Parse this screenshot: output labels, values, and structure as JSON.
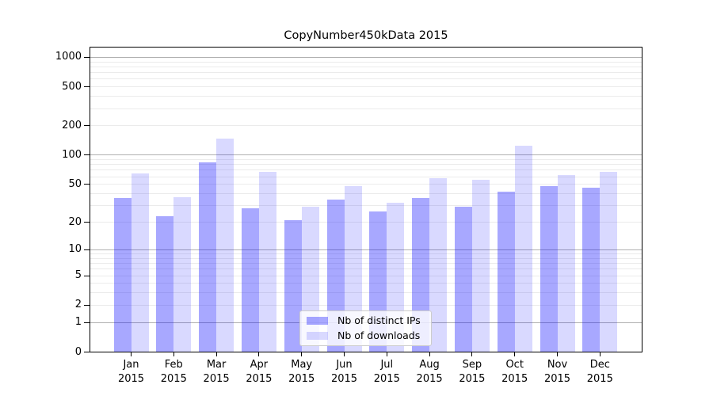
{
  "chart_data": {
    "type": "bar",
    "title": "CopyNumber450kData 2015",
    "categories": [
      "Jan",
      "Feb",
      "Mar",
      "Apr",
      "May",
      "Jun",
      "Jul",
      "Aug",
      "Sep",
      "Oct",
      "Nov",
      "Dec"
    ],
    "x_tick_year": "2015",
    "series": [
      {
        "name": "Nb of distinct IPs",
        "color": "rgba(0,0,255,0.34)",
        "values": [
          36,
          23,
          84,
          28,
          21,
          35,
          26,
          36,
          29,
          42,
          48,
          46
        ]
      },
      {
        "name": "Nb of downloads",
        "color": "rgba(0,0,255,0.15)",
        "values": [
          65,
          37,
          148,
          67,
          29,
          48,
          32,
          58,
          56,
          124,
          62,
          67
        ]
      }
    ],
    "y_axis": {
      "scale": "log1p",
      "tick_values": [
        1000,
        500,
        200,
        100,
        50,
        20,
        10,
        5,
        2,
        1,
        0
      ],
      "tick_labels": [
        "1000",
        "500",
        "200",
        "100",
        "50",
        "20",
        "10",
        "5",
        "2",
        "1",
        "0"
      ],
      "major_gridlines": [
        1,
        10,
        100,
        1000
      ],
      "minor_gridline_decade_bases": [
        1,
        10,
        100
      ],
      "ylim": [
        0,
        1270
      ]
    },
    "xlabel": "",
    "ylabel": "",
    "grid": "major+minor",
    "legend_position": "lower center",
    "colors": {
      "major_grid": "#b0b0b0",
      "minor_grid": "#ebebeb",
      "axis": "#000000",
      "text": "#000000",
      "legend_border": "#cccccc",
      "legend_background": "rgba(255,255,255,0.8)"
    }
  }
}
